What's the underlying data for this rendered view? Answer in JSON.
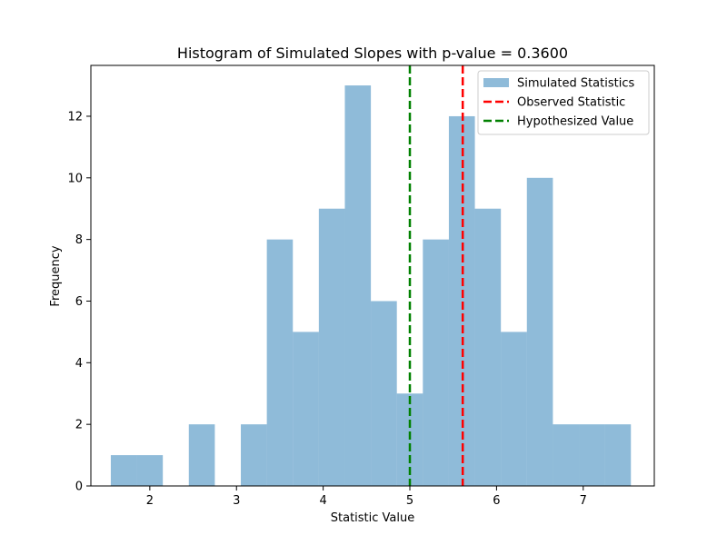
{
  "chart_data": {
    "type": "bar",
    "title": "Histogram of Simulated Slopes with p-value = 0.3600",
    "xlabel": "Statistic Value",
    "ylabel": "Frequency",
    "xlim": [
      1.32,
      7.82
    ],
    "ylim": [
      0,
      13.65
    ],
    "xticks": [
      2,
      3,
      4,
      5,
      6,
      7
    ],
    "yticks": [
      0,
      2,
      4,
      6,
      8,
      10,
      12
    ],
    "bins": [
      {
        "start": 1.55,
        "end": 1.85,
        "count": 1
      },
      {
        "start": 1.85,
        "end": 2.15,
        "count": 1
      },
      {
        "start": 2.15,
        "end": 2.45,
        "count": 0
      },
      {
        "start": 2.45,
        "end": 2.75,
        "count": 2
      },
      {
        "start": 2.75,
        "end": 3.05,
        "count": 0
      },
      {
        "start": 3.05,
        "end": 3.35,
        "count": 2
      },
      {
        "start": 3.35,
        "end": 3.65,
        "count": 8
      },
      {
        "start": 3.65,
        "end": 3.95,
        "count": 5
      },
      {
        "start": 3.95,
        "end": 4.25,
        "count": 9
      },
      {
        "start": 4.25,
        "end": 4.55,
        "count": 13
      },
      {
        "start": 4.55,
        "end": 4.85,
        "count": 6
      },
      {
        "start": 4.85,
        "end": 5.15,
        "count": 3
      },
      {
        "start": 5.15,
        "end": 5.45,
        "count": 8
      },
      {
        "start": 5.45,
        "end": 5.75,
        "count": 12
      },
      {
        "start": 5.75,
        "end": 6.05,
        "count": 9
      },
      {
        "start": 6.05,
        "end": 6.35,
        "count": 5
      },
      {
        "start": 6.35,
        "end": 6.65,
        "count": 10
      },
      {
        "start": 6.65,
        "end": 6.95,
        "count": 2
      },
      {
        "start": 6.95,
        "end": 7.25,
        "count": 2
      },
      {
        "start": 7.25,
        "end": 7.55,
        "count": 2
      }
    ],
    "bar_color": "#1f77b4",
    "bar_opacity": 0.5,
    "vlines": [
      {
        "name": "Observed Statistic",
        "x": 5.61,
        "color": "#ff0000"
      },
      {
        "name": "Hypothesized Value",
        "x": 5.0,
        "color": "#008000"
      }
    ],
    "legend": {
      "position": "top-right",
      "entries": [
        {
          "label": "Simulated Statistics",
          "kind": "patch",
          "color": "#1f77b4"
        },
        {
          "label": "Observed Statistic",
          "kind": "dashed-line",
          "color": "#ff0000"
        },
        {
          "label": "Hypothesized Value",
          "kind": "dashed-line",
          "color": "#008000"
        }
      ]
    },
    "grid": false
  }
}
